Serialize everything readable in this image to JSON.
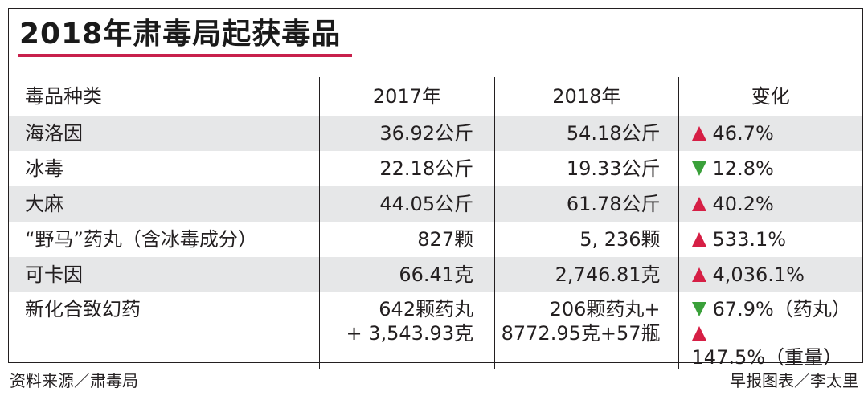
{
  "title": "2018年肃毒局起获毒品",
  "colors": {
    "title_underline": "#c8204c",
    "row_shade": "#e6e7e8",
    "increase": "#d61f45",
    "decrease": "#3aa03a"
  },
  "table": {
    "headers": [
      "毒品种类",
      "2017年",
      "2018年",
      "变化"
    ],
    "rows": [
      {
        "drug": "海洛因",
        "y2017": "36.92公斤",
        "y2018": "54.18公斤",
        "change": "46.7%",
        "direction": "up"
      },
      {
        "drug": "冰毒",
        "y2017": "22.18公斤",
        "y2018": "19.33公斤",
        "change": "12.8%",
        "direction": "down"
      },
      {
        "drug": "大麻",
        "y2017": "44.05公斤",
        "y2018": "61.78公斤",
        "change": "40.2%",
        "direction": "up"
      },
      {
        "drug": "“野马”药丸（含冰毒成分）",
        "y2017": "827颗",
        "y2018": "5, 236颗",
        "change": "533.1%",
        "direction": "up"
      },
      {
        "drug": "可卡因",
        "y2017": "66.41克",
        "y2018": "2,746.81克",
        "change": "4,036.1%",
        "direction": "up"
      }
    ],
    "last_row": {
      "drug": "新化合致幻药",
      "y2017_line1": "642颗药丸",
      "y2017_line2": "+ 3,543.93克",
      "y2018_line1": "206颗药丸+",
      "y2018_line2": "8772.95克+57瓶",
      "change_line1": "67.9%（药丸）",
      "change_line1_direction": "down",
      "change_line2": "147.5%（重量）",
      "change_line2_direction": "up"
    }
  },
  "footer": {
    "source": "资料来源／肃毒局",
    "credit": "早报图表／李太里"
  }
}
